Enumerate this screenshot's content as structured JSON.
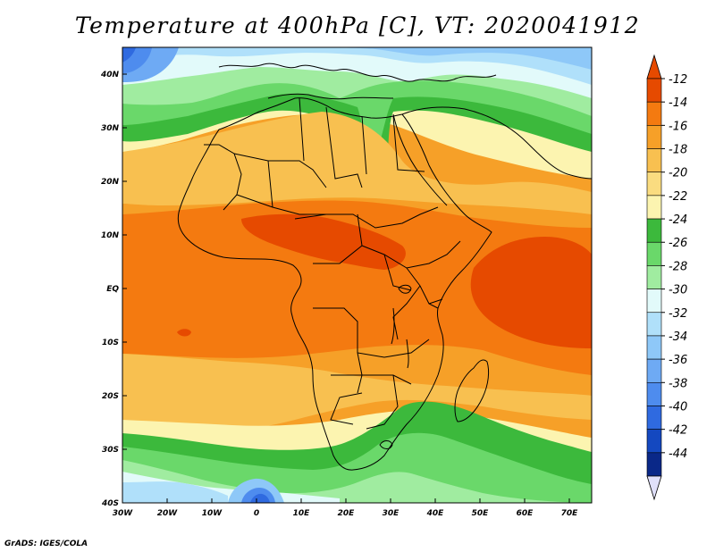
{
  "title": "Temperature at 400hPa [C], VT: 2020041912",
  "footer": "GrADS: IGES/COLA",
  "map": {
    "projection": "lat-lon",
    "lon_range": [
      -30,
      75
    ],
    "lat_range": [
      -40,
      45
    ],
    "lon_ticks": [
      {
        "value": -30,
        "label": "30W"
      },
      {
        "value": -20,
        "label": "20W"
      },
      {
        "value": -10,
        "label": "10W"
      },
      {
        "value": 0,
        "label": "0"
      },
      {
        "value": 10,
        "label": "10E"
      },
      {
        "value": 20,
        "label": "20E"
      },
      {
        "value": 30,
        "label": "30E"
      },
      {
        "value": 40,
        "label": "40E"
      },
      {
        "value": 50,
        "label": "50E"
      },
      {
        "value": 60,
        "label": "60E"
      },
      {
        "value": 70,
        "label": "70E"
      }
    ],
    "lat_ticks": [
      {
        "value": 40,
        "label": "40N"
      },
      {
        "value": 30,
        "label": "30N"
      },
      {
        "value": 20,
        "label": "20N"
      },
      {
        "value": 10,
        "label": "10N"
      },
      {
        "value": 0,
        "label": "EQ"
      },
      {
        "value": -10,
        "label": "10S"
      },
      {
        "value": -20,
        "label": "20S"
      },
      {
        "value": -30,
        "label": "30S"
      },
      {
        "value": -40,
        "label": "40S"
      }
    ]
  },
  "colorbar": {
    "labels": [
      "-12",
      "-14",
      "-16",
      "-18",
      "-20",
      "-22",
      "-24",
      "-26",
      "-28",
      "-30",
      "-32",
      "-34",
      "-36",
      "-38",
      "-40",
      "-42",
      "-44"
    ],
    "colors": [
      "#e64a00",
      "#f47a10",
      "#f6a028",
      "#f8c050",
      "#fadc80",
      "#fcf4b0",
      "#3cb93c",
      "#6ad86a",
      "#a0eca0",
      "#e2fafa",
      "#b0e0fa",
      "#8ec8f8",
      "#6eaaf4",
      "#4e8cee",
      "#2f6ae0",
      "#1448c0",
      "#0a2888"
    ],
    "top_arrow_color": "#e64a00",
    "bottom_arrow_color": "#e0e0fa"
  }
}
